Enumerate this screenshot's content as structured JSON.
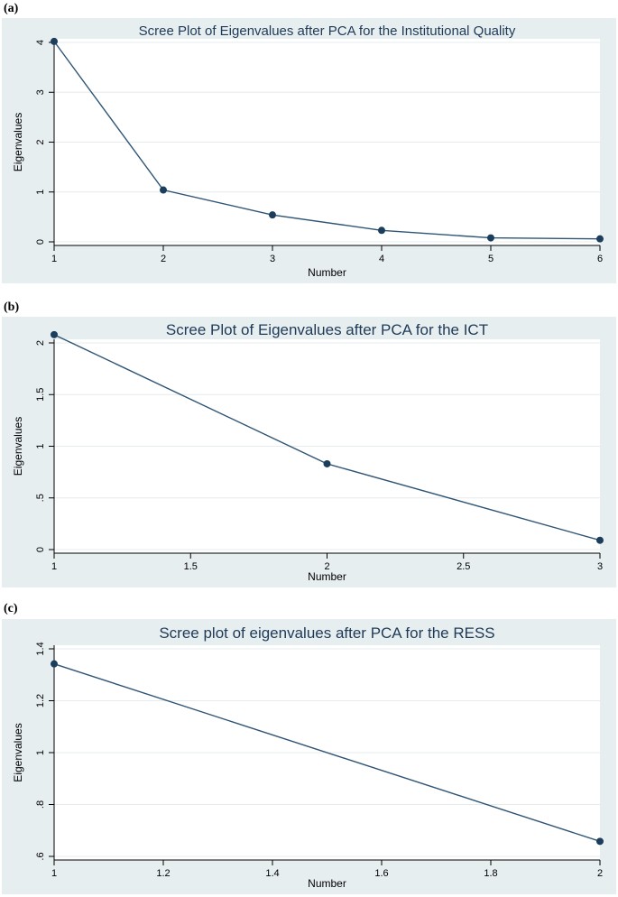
{
  "panels": [
    {
      "label": "(a)"
    },
    {
      "label": "(b)"
    },
    {
      "label": "(c)"
    }
  ],
  "colors": {
    "outer_bg": "#e7eef0",
    "plot_bg": "#ffffff",
    "grid": "#e6ecee",
    "line": "#2f5474",
    "marker": "#1c3d5c",
    "title": "#1f3a57",
    "text": "#000000"
  },
  "chart_data": [
    {
      "type": "line",
      "title": "Scree Plot of Eigenvalues after PCA for the Institutional Quality",
      "xlabel": "Number",
      "ylabel": "Eigenvalues",
      "x": [
        1,
        2,
        3,
        4,
        5,
        6
      ],
      "values": [
        4.02,
        1.04,
        0.54,
        0.23,
        0.08,
        0.06
      ],
      "xlim": [
        1,
        6
      ],
      "ylim": [
        0,
        4
      ],
      "xticks": [
        1,
        2,
        3,
        4,
        5,
        6
      ],
      "xtick_labels": [
        "1",
        "2",
        "3",
        "4",
        "5",
        "6"
      ],
      "yticks": [
        0,
        1,
        2,
        3,
        4
      ],
      "ytick_labels": [
        "0",
        "1",
        "2",
        "3",
        "4"
      ],
      "grid": true
    },
    {
      "type": "line",
      "title": "Scree Plot of Eigenvalues after PCA for the ICT",
      "xlabel": "Number",
      "ylabel": "Eigenvalues",
      "x": [
        1,
        2,
        3
      ],
      "values": [
        2.08,
        0.83,
        0.09
      ],
      "xlim": [
        1,
        3
      ],
      "ylim": [
        0,
        2
      ],
      "xticks": [
        1,
        1.5,
        2,
        2.5,
        3
      ],
      "xtick_labels": [
        "1",
        "1.5",
        "2",
        "2.5",
        "3"
      ],
      "yticks": [
        0,
        0.5,
        1,
        1.5,
        2
      ],
      "ytick_labels": [
        "0",
        ".5",
        "1",
        "1.5",
        "2"
      ],
      "grid": true
    },
    {
      "type": "line",
      "title": "Scree plot of eigenvalues after PCA for the RESS",
      "xlabel": "Number",
      "ylabel": "Eigenvalues",
      "x": [
        1,
        2
      ],
      "values": [
        1.342,
        0.658
      ],
      "xlim": [
        1,
        2
      ],
      "ylim": [
        0.6,
        1.4
      ],
      "xticks": [
        1,
        1.2,
        1.4,
        1.6,
        1.8,
        2
      ],
      "xtick_labels": [
        "1",
        "1.2",
        "1.4",
        "1.6",
        "1.8",
        "2"
      ],
      "yticks": [
        0.6,
        0.8,
        1,
        1.2,
        1.4
      ],
      "ytick_labels": [
        ".6",
        ".8",
        "1",
        "1.2",
        "1.4"
      ],
      "grid": true
    }
  ]
}
